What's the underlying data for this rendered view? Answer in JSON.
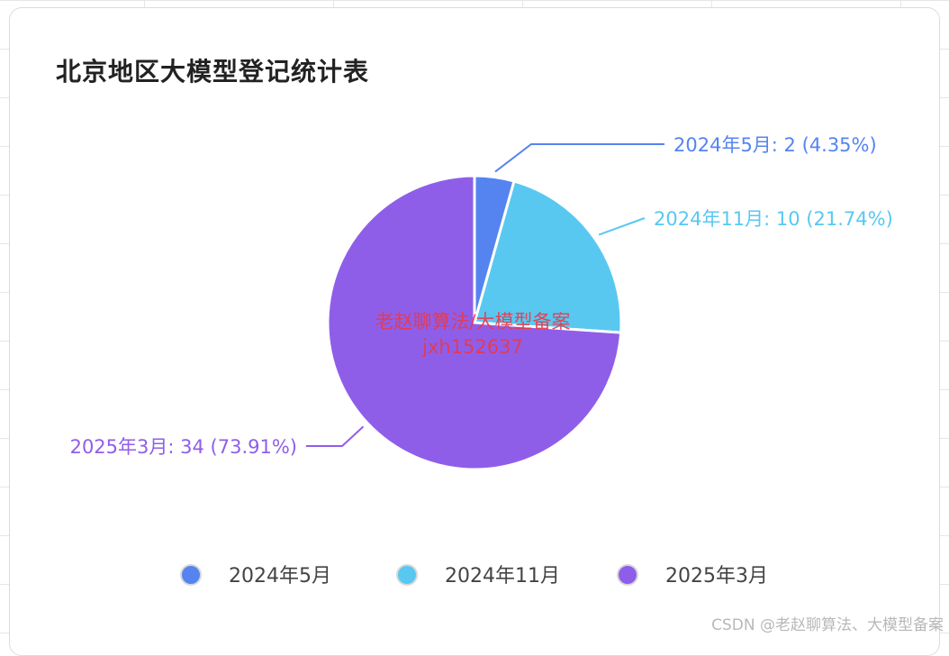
{
  "chart_data": {
    "type": "pie",
    "title": "北京地区大模型登记统计表",
    "slices": [
      {
        "name": "2024年5月",
        "value": 2,
        "percent": "4.35%",
        "color": "#5584f1"
      },
      {
        "name": "2024年11月",
        "value": 10,
        "percent": "21.74%",
        "color": "#58c8f1"
      },
      {
        "name": "2025年3月",
        "value": 34,
        "percent": "73.91%",
        "color": "#8f5ee9"
      }
    ],
    "legend_position": "bottom"
  },
  "watermark": {
    "line1": "老赵聊算法/大模型备案",
    "line2": "jxh152637",
    "color": "#e8394a"
  },
  "footer_text": "CSDN @老赵聊算法、大模型备案"
}
